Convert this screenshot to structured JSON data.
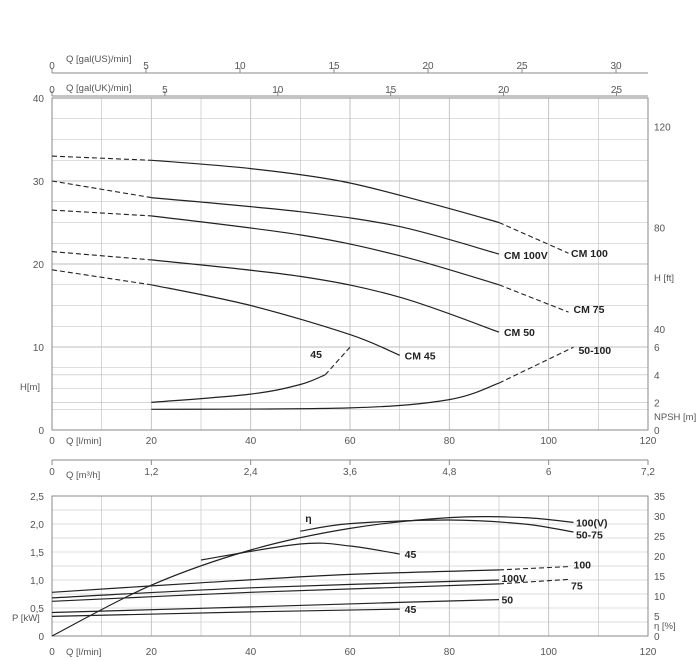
{
  "chart_data": [
    {
      "type": "line",
      "panel": "head",
      "top_axes": [
        {
          "label": "Q [gal(US)/min]",
          "ticks": [
            "0",
            "5",
            "10",
            "15",
            "20",
            "25",
            "30"
          ]
        },
        {
          "label": "Q [gal(UK)/min]",
          "ticks": [
            "0",
            "5",
            "10",
            "15",
            "20",
            "25"
          ]
        }
      ],
      "xlabel": "Q [l/min]",
      "xlim": [
        0,
        120
      ],
      "x_ticks": [
        "0",
        "20",
        "40",
        "60",
        "80",
        "100",
        "120"
      ],
      "ylabel": "H[m]",
      "ylim": [
        0,
        40
      ],
      "y_ticks": [
        "0",
        "10",
        "20",
        "30",
        "40"
      ],
      "right_axis_ft": {
        "label": "H [ft]",
        "ticks": [
          "40",
          "80",
          "120"
        ]
      },
      "right_axis_npsh": {
        "label": "NPSH [m]",
        "ticks": [
          "0",
          "2",
          "4",
          "6"
        ]
      },
      "grid": true,
      "series": [
        {
          "name": "CM 100",
          "dashed_from": [
            0,
            33.0,
            20,
            32.5
          ],
          "solid": [
            [
              20,
              32.5
            ],
            [
              40,
              31.5
            ],
            [
              58,
              30.0
            ],
            [
              75,
              27.5
            ],
            [
              90,
              25.0
            ]
          ],
          "dashed_to": [
            [
              90,
              25.0
            ],
            [
              104,
              21.3
            ]
          ]
        },
        {
          "name": "CM 100V",
          "dashed_from": [
            0,
            30.0,
            20,
            28.0
          ],
          "solid": [
            [
              20,
              28.0
            ],
            [
              50,
              26.3
            ],
            [
              70,
              24.5
            ],
            [
              90,
              21.2
            ]
          ],
          "dashed_to": []
        },
        {
          "name": "CM 75",
          "dashed_from": [
            0,
            26.5,
            20,
            25.8
          ],
          "solid": [
            [
              20,
              25.8
            ],
            [
              50,
              23.5
            ],
            [
              70,
              21.0
            ],
            [
              90,
              17.5
            ]
          ],
          "dashed_to": [
            [
              90,
              17.5
            ],
            [
              104,
              14.2
            ]
          ]
        },
        {
          "name": "CM 50",
          "dashed_from": [
            0,
            21.5,
            20,
            20.5
          ],
          "solid": [
            [
              20,
              20.5
            ],
            [
              50,
              18.5
            ],
            [
              70,
              16.0
            ],
            [
              90,
              11.8
            ]
          ],
          "dashed_to": []
        },
        {
          "name": "CM 45",
          "dashed_from": [
            0,
            19.3,
            20,
            17.5
          ],
          "solid": [
            [
              20,
              17.5
            ],
            [
              40,
              15.0
            ],
            [
              60,
              11.5
            ],
            [
              70,
              9.0
            ]
          ],
          "dashed_to": []
        }
      ],
      "npsh_series": [
        {
          "name": "45",
          "solid": [
            [
              20,
              2.0
            ],
            [
              40,
              2.6
            ],
            [
              50,
              3.3
            ],
            [
              55,
              4.0
            ]
          ],
          "dashed_to": [
            [
              55,
              4.0
            ],
            [
              60,
              6.0
            ]
          ]
        },
        {
          "name": "50-100",
          "solid": [
            [
              20,
              1.5
            ],
            [
              60,
              1.6
            ],
            [
              80,
              2.2
            ],
            [
              90,
              3.4
            ]
          ],
          "dashed_to": [
            [
              90,
              3.4
            ],
            [
              105,
              6.0
            ]
          ]
        }
      ],
      "labels": {
        "CM 100": "CM 100",
        "CM 100V": "CM 100V",
        "CM 75": "CM 75",
        "CM 50": "CM 50",
        "CM 45": "CM 45",
        "npsh45": "45",
        "npsh50100": "50-100"
      }
    },
    {
      "type": "line",
      "panel": "power-efficiency",
      "top_axis": {
        "label": "Q [m³/h]",
        "ticks": [
          "0",
          "1,2",
          "2,4",
          "3,6",
          "4,8",
          "6",
          "7,2"
        ]
      },
      "xlabel": "Q [l/min]",
      "xlim": [
        0,
        120
      ],
      "x_ticks": [
        "0",
        "20",
        "40",
        "60",
        "80",
        "100",
        "120"
      ],
      "ylabel": "P [kW]",
      "ylim": [
        0,
        2.5
      ],
      "y_ticks": [
        "0",
        "0,5",
        "1,0",
        "1,5",
        "2,0",
        "2,5"
      ],
      "right_axis": {
        "label": "η [%]",
        "ylim": [
          0,
          35
        ],
        "ticks": [
          "0",
          "5",
          "10",
          "15",
          "20",
          "25",
          "30",
          "35"
        ]
      },
      "grid": true,
      "efficiency_label": "η",
      "efficiency_series": [
        {
          "name": "100(V)",
          "points": [
            [
              0,
              0.0
            ],
            [
              20,
              12.7
            ],
            [
              40,
              21.5
            ],
            [
              60,
              26.9
            ],
            [
              80,
              29.6
            ],
            [
              95,
              29.6
            ],
            [
              105,
              28.4
            ]
          ]
        },
        {
          "name": "50-75",
          "points": [
            [
              50,
              26.2
            ],
            [
              60,
              28.1
            ],
            [
              80,
              29.0
            ],
            [
              95,
              28.0
            ],
            [
              105,
              26.0
            ]
          ]
        },
        {
          "name": "45",
          "points": [
            [
              30,
              19.0
            ],
            [
              50,
              23.0
            ],
            [
              60,
              22.5
            ],
            [
              70,
              20.5
            ]
          ]
        }
      ],
      "power_series": [
        {
          "name": "100",
          "solid": [
            [
              0,
              0.78
            ],
            [
              30,
              0.95
            ],
            [
              60,
              1.1
            ],
            [
              90,
              1.18
            ]
          ],
          "dashed_to": [
            [
              90,
              1.18
            ],
            [
              104,
              1.24
            ]
          ]
        },
        {
          "name": "100V",
          "solid": [
            [
              0,
              0.68
            ],
            [
              40,
              0.86
            ],
            [
              90,
              1.0
            ]
          ],
          "dashed_to": []
        },
        {
          "name": "75",
          "solid": [
            [
              0,
              0.62
            ],
            [
              40,
              0.78
            ],
            [
              70,
              0.87
            ],
            [
              90,
              0.93
            ]
          ],
          "dashed_to": [
            [
              90,
              0.93
            ],
            [
              104,
              1.01
            ]
          ]
        },
        {
          "name": "50",
          "solid": [
            [
              0,
              0.42
            ],
            [
              40,
              0.52
            ],
            [
              70,
              0.6
            ],
            [
              90,
              0.65
            ]
          ],
          "dashed_to": []
        },
        {
          "name": "45",
          "solid": [
            [
              0,
              0.35
            ],
            [
              40,
              0.43
            ],
            [
              70,
              0.48
            ]
          ],
          "dashed_to": []
        }
      ],
      "labels": {
        "100(V)": "100(V)",
        "50-75": "50-75",
        "eta45": "45",
        "p100": "100",
        "p100V": "100V",
        "p75": "75",
        "p50": "50",
        "p45": "45"
      }
    }
  ]
}
